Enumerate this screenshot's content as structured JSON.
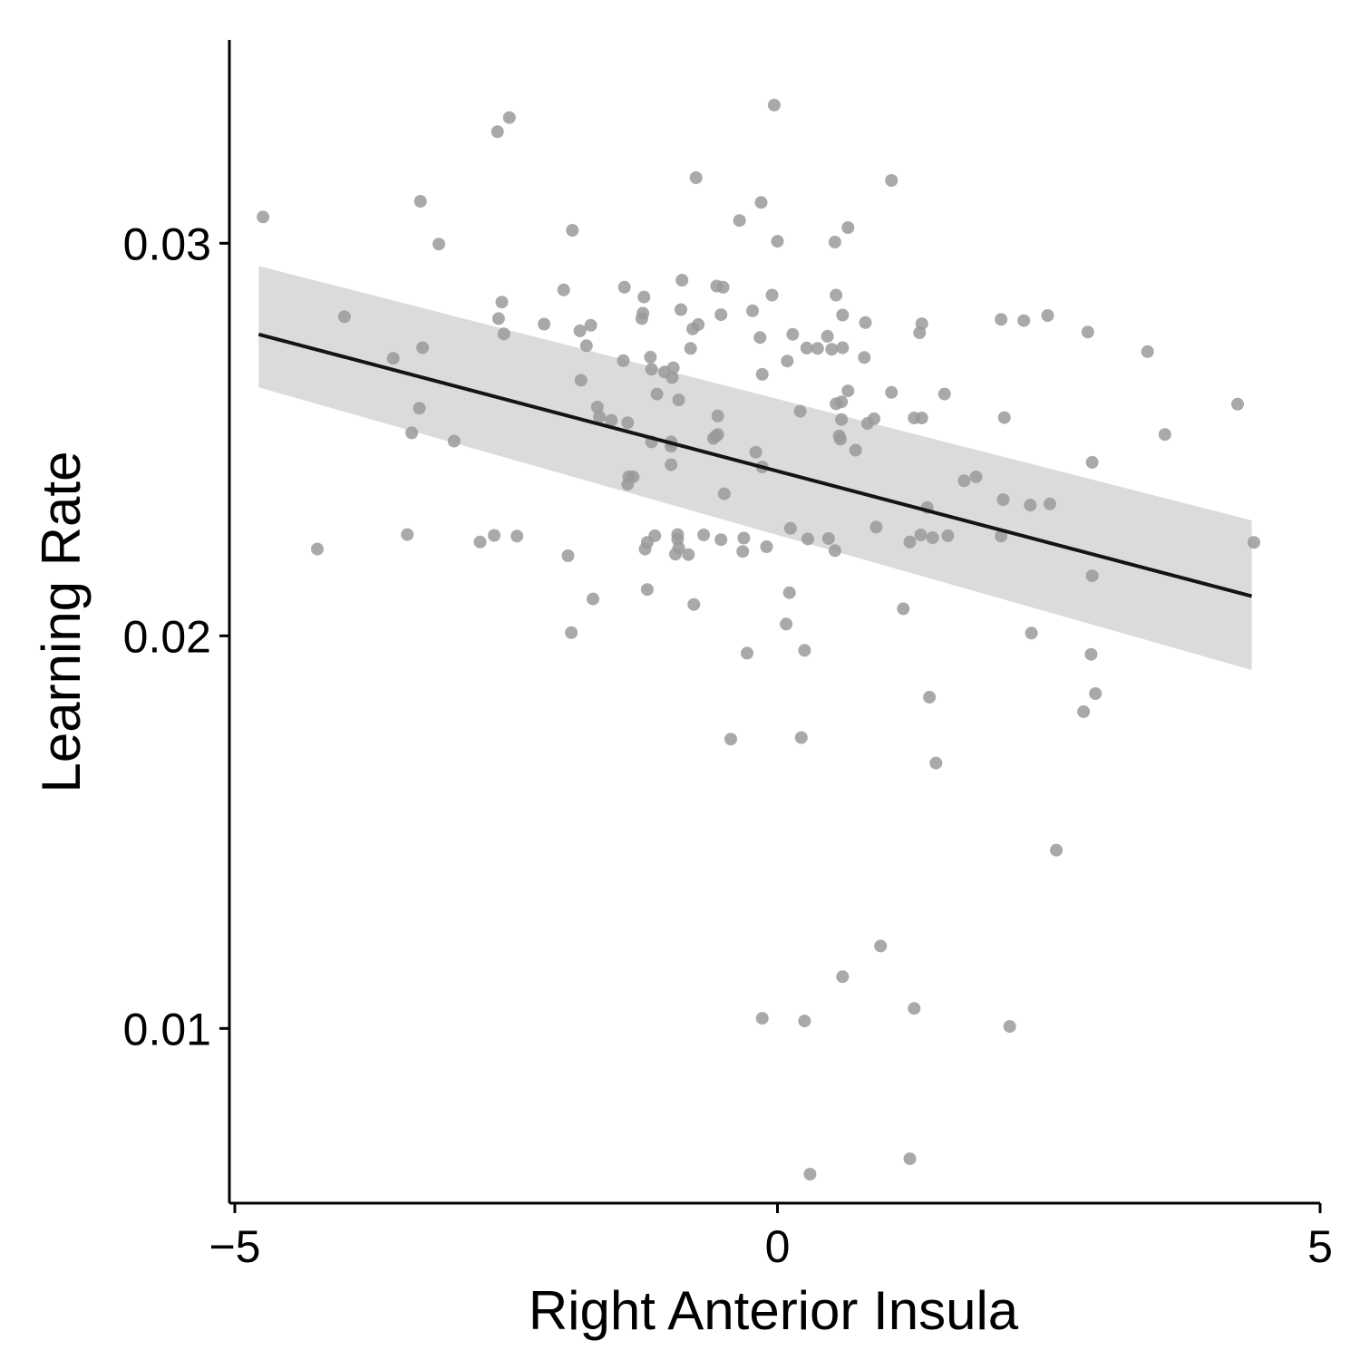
{
  "chart_data": {
    "type": "scatter",
    "title": "",
    "xlabel": "Right Anterior Insula",
    "ylabel": "Learning Rate",
    "xlim": [
      -5.05,
      5
    ],
    "ylim": [
      0.00555,
      0.03518
    ],
    "x_ticks": [
      -5,
      0,
      5
    ],
    "x_tick_labels": [
      "−5",
      "0",
      "5"
    ],
    "y_ticks": [
      0.01,
      0.02,
      0.03
    ],
    "y_tick_labels": [
      "0.01",
      "0.02",
      "0.03"
    ],
    "grid": false,
    "legend": "none",
    "colors": {
      "points": "#9a9a9c",
      "regression_line": "#141414",
      "confidence_band": "#d9d9d9",
      "axes": "#000000"
    },
    "regression": {
      "x": [
        -4.78,
        4.37
      ],
      "y": [
        0.02768,
        0.02101
      ],
      "ci_lower": [
        0.02633,
        0.01913
      ],
      "ci_upper": [
        0.02942,
        0.02294
      ]
    },
    "points": [
      {
        "x": -4.74,
        "y": 0.03067
      },
      {
        "x": -3.29,
        "y": 0.03107
      },
      {
        "x": -3.12,
        "y": 0.02998
      },
      {
        "x": -2.58,
        "y": 0.03284
      },
      {
        "x": -2.47,
        "y": 0.0332
      },
      {
        "x": -1.89,
        "y": 0.03033
      },
      {
        "x": -0.75,
        "y": 0.03167
      },
      {
        "x": -0.03,
        "y": 0.03352
      },
      {
        "x": 1.05,
        "y": 0.0316
      },
      {
        "x": -0.35,
        "y": 0.03058
      },
      {
        "x": -0.15,
        "y": 0.03104
      },
      {
        "x": 0.0,
        "y": 0.03005
      },
      {
        "x": 0.53,
        "y": 0.03003
      },
      {
        "x": 0.65,
        "y": 0.0304
      },
      {
        "x": -3.99,
        "y": 0.02813
      },
      {
        "x": -3.54,
        "y": 0.02707
      },
      {
        "x": -3.27,
        "y": 0.02734
      },
      {
        "x": -2.54,
        "y": 0.0285
      },
      {
        "x": -2.57,
        "y": 0.02808
      },
      {
        "x": -2.52,
        "y": 0.02769
      },
      {
        "x": -2.15,
        "y": 0.02794
      },
      {
        "x": -1.97,
        "y": 0.02881
      },
      {
        "x": -1.82,
        "y": 0.02777
      },
      {
        "x": -1.72,
        "y": 0.02791
      },
      {
        "x": -1.76,
        "y": 0.02739
      },
      {
        "x": -1.41,
        "y": 0.02888
      },
      {
        "x": -1.23,
        "y": 0.02863
      },
      {
        "x": -1.24,
        "y": 0.02822
      },
      {
        "x": -1.25,
        "y": 0.02808
      },
      {
        "x": -0.88,
        "y": 0.02906
      },
      {
        "x": -0.89,
        "y": 0.02831
      },
      {
        "x": -0.78,
        "y": 0.02782
      },
      {
        "x": -0.73,
        "y": 0.02793
      },
      {
        "x": -0.56,
        "y": 0.02891
      },
      {
        "x": -0.5,
        "y": 0.02888
      },
      {
        "x": -0.52,
        "y": 0.02818
      },
      {
        "x": -0.23,
        "y": 0.02828
      },
      {
        "x": -0.05,
        "y": 0.02868
      },
      {
        "x": -0.16,
        "y": 0.0276
      },
      {
        "x": 0.14,
        "y": 0.02768
      },
      {
        "x": 0.27,
        "y": 0.02733
      },
      {
        "x": 0.37,
        "y": 0.02732
      },
      {
        "x": 0.46,
        "y": 0.02763
      },
      {
        "x": 0.5,
        "y": 0.0273
      },
      {
        "x": 0.54,
        "y": 0.02868
      },
      {
        "x": 0.6,
        "y": 0.02817
      },
      {
        "x": 0.6,
        "y": 0.02734
      },
      {
        "x": 0.81,
        "y": 0.02798
      },
      {
        "x": 1.33,
        "y": 0.02795
      },
      {
        "x": 1.31,
        "y": 0.02772
      },
      {
        "x": 2.06,
        "y": 0.02806
      },
      {
        "x": 2.27,
        "y": 0.02803
      },
      {
        "x": 2.49,
        "y": 0.02816
      },
      {
        "x": 2.86,
        "y": 0.02774
      },
      {
        "x": 3.41,
        "y": 0.02724
      },
      {
        "x": -1.42,
        "y": 0.02701
      },
      {
        "x": -1.17,
        "y": 0.0271
      },
      {
        "x": -1.16,
        "y": 0.02679
      },
      {
        "x": -1.04,
        "y": 0.02672
      },
      {
        "x": -0.96,
        "y": 0.02683
      },
      {
        "x": -0.97,
        "y": 0.02658
      },
      {
        "x": -0.8,
        "y": 0.02732
      },
      {
        "x": -0.14,
        "y": 0.02666
      },
      {
        "x": 0.09,
        "y": 0.027
      },
      {
        "x": 0.8,
        "y": 0.02709
      },
      {
        "x": -1.81,
        "y": 0.02651
      },
      {
        "x": -1.11,
        "y": 0.02616
      },
      {
        "x": -0.91,
        "y": 0.02601
      },
      {
        "x": 0.65,
        "y": 0.02624
      },
      {
        "x": 1.05,
        "y": 0.0262
      },
      {
        "x": 1.54,
        "y": 0.02616
      },
      {
        "x": 4.24,
        "y": 0.0259
      },
      {
        "x": -3.3,
        "y": 0.0258
      },
      {
        "x": -1.66,
        "y": 0.02583
      },
      {
        "x": -1.64,
        "y": 0.02558
      },
      {
        "x": -1.53,
        "y": 0.02549
      },
      {
        "x": -1.38,
        "y": 0.02543
      },
      {
        "x": -0.55,
        "y": 0.0256
      },
      {
        "x": 0.21,
        "y": 0.02572
      },
      {
        "x": 0.54,
        "y": 0.02591
      },
      {
        "x": 0.59,
        "y": 0.02596
      },
      {
        "x": 0.59,
        "y": 0.02551
      },
      {
        "x": 0.83,
        "y": 0.02541
      },
      {
        "x": 0.89,
        "y": 0.02553
      },
      {
        "x": 1.26,
        "y": 0.02555
      },
      {
        "x": 1.33,
        "y": 0.02555
      },
      {
        "x": 2.09,
        "y": 0.02556
      },
      {
        "x": -3.37,
        "y": 0.02517
      },
      {
        "x": -2.98,
        "y": 0.02496
      },
      {
        "x": -1.16,
        "y": 0.02494
      },
      {
        "x": -0.98,
        "y": 0.02494
      },
      {
        "x": -0.98,
        "y": 0.02483
      },
      {
        "x": -0.57,
        "y": 0.02508
      },
      {
        "x": -0.55,
        "y": 0.02513
      },
      {
        "x": -0.59,
        "y": 0.02503
      },
      {
        "x": 0.57,
        "y": 0.02509
      },
      {
        "x": 0.58,
        "y": 0.02501
      },
      {
        "x": 0.72,
        "y": 0.02473
      },
      {
        "x": -0.2,
        "y": 0.02468
      },
      {
        "x": 3.57,
        "y": 0.02513
      },
      {
        "x": -0.98,
        "y": 0.02436
      },
      {
        "x": -0.14,
        "y": 0.0243
      },
      {
        "x": 2.9,
        "y": 0.02442
      },
      {
        "x": -1.37,
        "y": 0.02405
      },
      {
        "x": -1.33,
        "y": 0.02405
      },
      {
        "x": -1.38,
        "y": 0.02386
      },
      {
        "x": -0.49,
        "y": 0.02362
      },
      {
        "x": 1.72,
        "y": 0.02395
      },
      {
        "x": 1.83,
        "y": 0.02405
      },
      {
        "x": 2.08,
        "y": 0.02347
      },
      {
        "x": 2.33,
        "y": 0.02333
      },
      {
        "x": 2.51,
        "y": 0.02336
      },
      {
        "x": -3.41,
        "y": 0.02258
      },
      {
        "x": -2.74,
        "y": 0.02239
      },
      {
        "x": -2.61,
        "y": 0.02256
      },
      {
        "x": -2.4,
        "y": 0.02254
      },
      {
        "x": -1.2,
        "y": 0.02238
      },
      {
        "x": -1.22,
        "y": 0.02221
      },
      {
        "x": -1.13,
        "y": 0.02255
      },
      {
        "x": -0.92,
        "y": 0.02258
      },
      {
        "x": -0.92,
        "y": 0.02246
      },
      {
        "x": -0.91,
        "y": 0.02224
      },
      {
        "x": -0.94,
        "y": 0.02208
      },
      {
        "x": -0.82,
        "y": 0.02207
      },
      {
        "x": -0.68,
        "y": 0.02257
      },
      {
        "x": -0.52,
        "y": 0.02245
      },
      {
        "x": -0.31,
        "y": 0.02249
      },
      {
        "x": -0.32,
        "y": 0.02215
      },
      {
        "x": -0.1,
        "y": 0.02227
      },
      {
        "x": 0.12,
        "y": 0.02274
      },
      {
        "x": 0.28,
        "y": 0.02247
      },
      {
        "x": 0.47,
        "y": 0.02248
      },
      {
        "x": 0.53,
        "y": 0.02217
      },
      {
        "x": 0.91,
        "y": 0.02277
      },
      {
        "x": 1.22,
        "y": 0.02239
      },
      {
        "x": 1.32,
        "y": 0.02257
      },
      {
        "x": 1.38,
        "y": 0.02327
      },
      {
        "x": 1.43,
        "y": 0.0225
      },
      {
        "x": 1.57,
        "y": 0.02255
      },
      {
        "x": 2.06,
        "y": 0.02254
      },
      {
        "x": 4.39,
        "y": 0.02238
      },
      {
        "x": -4.24,
        "y": 0.02221
      },
      {
        "x": -1.93,
        "y": 0.02204
      },
      {
        "x": 2.9,
        "y": 0.02153
      },
      {
        "x": -1.7,
        "y": 0.02094
      },
      {
        "x": -1.2,
        "y": 0.02118
      },
      {
        "x": -0.77,
        "y": 0.0208
      },
      {
        "x": 0.11,
        "y": 0.0211
      },
      {
        "x": 1.16,
        "y": 0.02069
      },
      {
        "x": -1.9,
        "y": 0.02008
      },
      {
        "x": 0.08,
        "y": 0.0203
      },
      {
        "x": -0.28,
        "y": 0.01956
      },
      {
        "x": 0.25,
        "y": 0.01963
      },
      {
        "x": 2.34,
        "y": 0.02007
      },
      {
        "x": 2.89,
        "y": 0.01953
      },
      {
        "x": 2.93,
        "y": 0.01853
      },
      {
        "x": 1.4,
        "y": 0.01844
      },
      {
        "x": 2.82,
        "y": 0.01807
      },
      {
        "x": -0.43,
        "y": 0.01737
      },
      {
        "x": 0.22,
        "y": 0.01741
      },
      {
        "x": 1.46,
        "y": 0.01676
      },
      {
        "x": 2.57,
        "y": 0.01454
      },
      {
        "x": 0.95,
        "y": 0.0121
      },
      {
        "x": 0.6,
        "y": 0.01132
      },
      {
        "x": 1.26,
        "y": 0.01051
      },
      {
        "x": -0.14,
        "y": 0.01026
      },
      {
        "x": 0.25,
        "y": 0.01019
      },
      {
        "x": 2.14,
        "y": 0.01005
      },
      {
        "x": 1.22,
        "y": 0.00668
      },
      {
        "x": 0.3,
        "y": 0.00629
      }
    ]
  }
}
